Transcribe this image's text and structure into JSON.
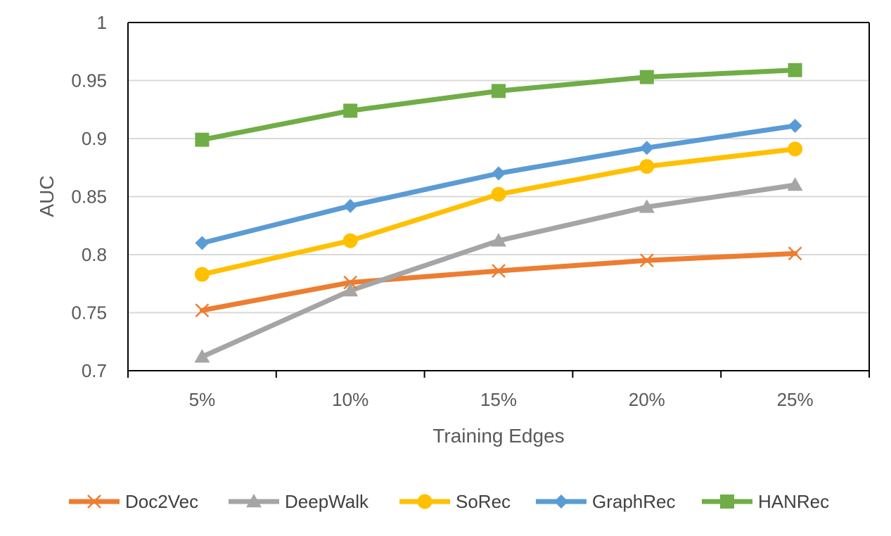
{
  "chart_data": {
    "type": "line",
    "title": "",
    "xlabel": "Training Edges",
    "ylabel": "AUC",
    "categories": [
      "5%",
      "10%",
      "15%",
      "20%",
      "25%"
    ],
    "ylim": [
      0.7,
      1.0
    ],
    "yticks": [
      0.7,
      0.75,
      0.8,
      0.85,
      0.9,
      0.95,
      1
    ],
    "ytick_labels": [
      "0.7",
      "0.75",
      "0.8",
      "0.85",
      "0.9",
      "0.95",
      "1"
    ],
    "grid": true,
    "legend_position": "bottom",
    "series": [
      {
        "name": "Doc2Vec",
        "color": "#ED7D31",
        "marker": "x",
        "values": [
          0.752,
          0.776,
          0.786,
          0.795,
          0.801
        ]
      },
      {
        "name": "DeepWalk",
        "color": "#A5A5A5",
        "marker": "triangle",
        "values": [
          0.712,
          0.769,
          0.812,
          0.841,
          0.86
        ]
      },
      {
        "name": "SoRec",
        "color": "#FFC000",
        "marker": "circle",
        "values": [
          0.783,
          0.812,
          0.852,
          0.876,
          0.891
        ]
      },
      {
        "name": "GraphRec",
        "color": "#5B9BD5",
        "marker": "diamond",
        "values": [
          0.81,
          0.842,
          0.87,
          0.892,
          0.911
        ]
      },
      {
        "name": "HANRec",
        "color": "#70AD47",
        "marker": "square",
        "values": [
          0.899,
          0.924,
          0.941,
          0.953,
          0.959
        ]
      }
    ]
  }
}
